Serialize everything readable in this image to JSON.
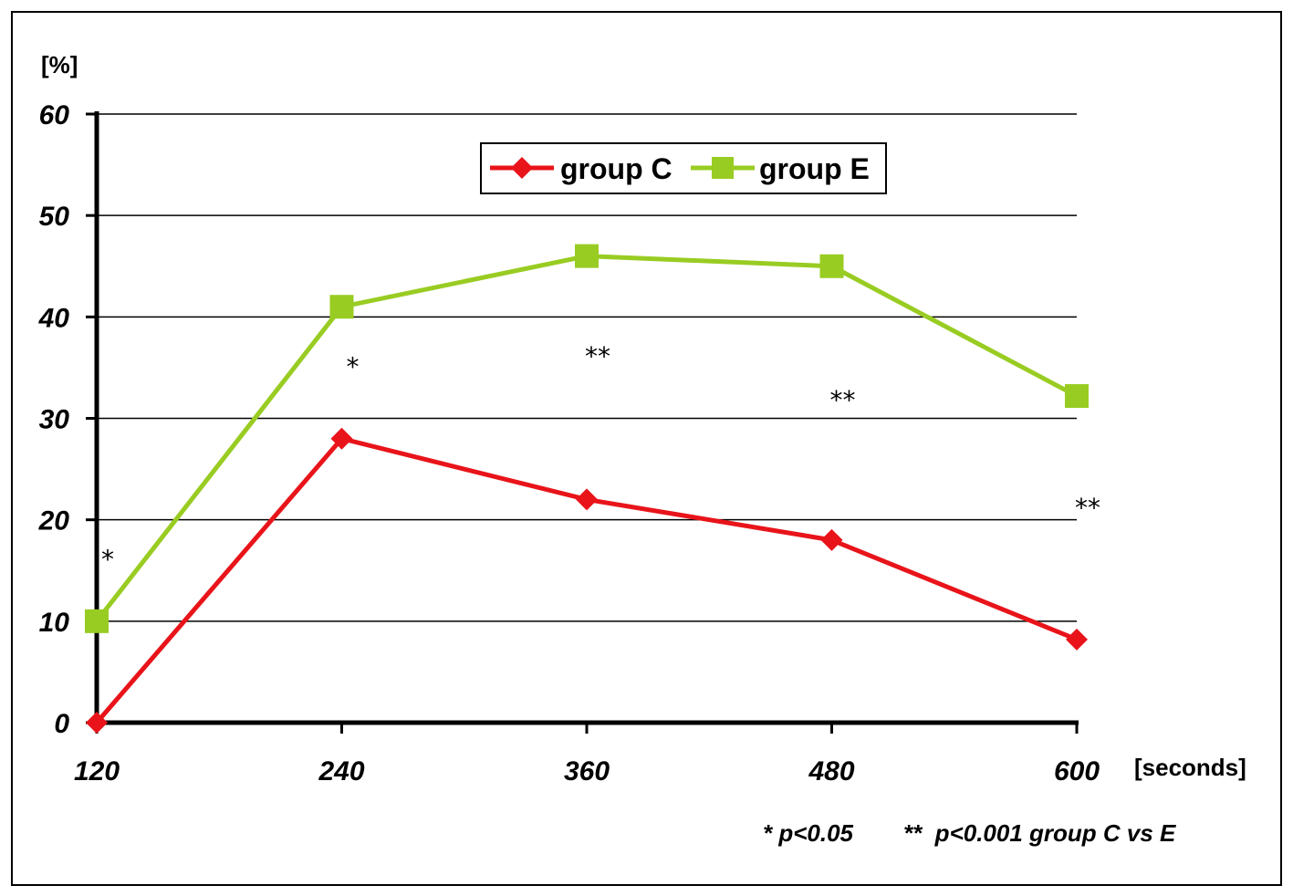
{
  "chart_data": {
    "type": "line",
    "x": [
      120,
      240,
      360,
      480,
      600
    ],
    "series": [
      {
        "name": "group C",
        "values": [
          0,
          28,
          22,
          18,
          8.2
        ],
        "color": "#e8141a",
        "marker": "diamond"
      },
      {
        "name": "group E",
        "values": [
          10,
          41,
          46,
          45,
          32.2
        ],
        "color": "#99cc22",
        "marker": "square"
      }
    ],
    "ylim": [
      0,
      60
    ],
    "yticks": [
      "0",
      "10",
      "20",
      "30",
      "40",
      "50",
      "60"
    ],
    "xticks": [
      "120",
      "240",
      "360",
      "480",
      "600"
    ],
    "ylabel": "[%]",
    "xlabel": "[seconds]",
    "grid": true,
    "legend_position": "top-center",
    "significance": [
      {
        "x": 120,
        "y": 16.5,
        "label": "*"
      },
      {
        "x": 240,
        "y": 35.5,
        "label": "*"
      },
      {
        "x": 360,
        "y": 36.5,
        "label": "**"
      },
      {
        "x": 480,
        "y": 32.2,
        "label": "**"
      },
      {
        "x": 600,
        "y": 21.6,
        "label": "**"
      }
    ],
    "footnote_1": "* p<0.05",
    "footnote_2": "**  p<0.001 group C vs E"
  }
}
